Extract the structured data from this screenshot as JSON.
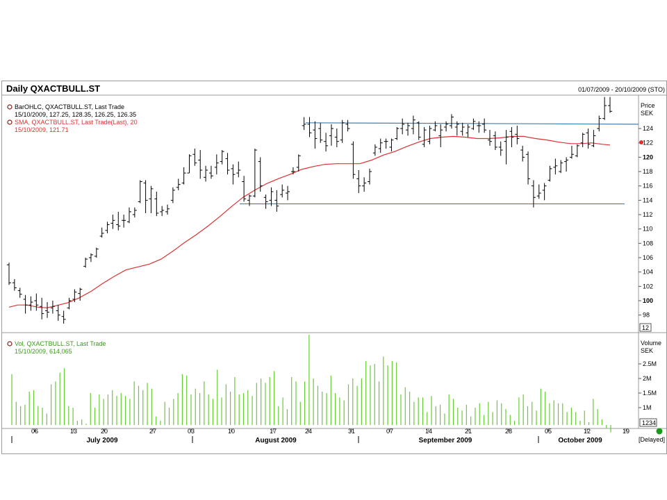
{
  "header": {
    "title": "Daily QXACTBULL.ST",
    "date_range": "01/07/2009 - 20/10/2009 (STO)"
  },
  "legend": {
    "bar_line1": "BarOHLC, QXACTBULL.ST, Last Trade",
    "bar_line2": "15/10/2009, 127.25, 128.35, 126.25, 126.35",
    "sma_line1": "SMA, QXACTBULL.ST, Last Trade(Last),  20",
    "sma_line2": "15/10/2009, 121.71",
    "vol_line1": "Vol, QXACTBULL.ST, Last Trade",
    "vol_line2": "15/10/2009, 614,065"
  },
  "price_axis": {
    "label": "Price",
    "unit": "SEK",
    "ticks": [
      "98",
      "100",
      "102",
      "104",
      "106",
      "108",
      "110",
      "112",
      "114",
      "116",
      "118",
      "120",
      "122",
      "124"
    ],
    "badge": "12"
  },
  "volume_axis": {
    "label": "Volume",
    "unit": "SEK",
    "ticks": [
      "1M",
      "1.5M",
      "2M",
      "2.5M"
    ],
    "badge": "1234"
  },
  "x_axis": {
    "day_ticks": [
      "06",
      "13",
      "20",
      "27",
      "03",
      "10",
      "17",
      "24",
      "31",
      "07",
      "14",
      "21",
      "28",
      "05",
      "12",
      "19"
    ],
    "months": [
      "July 2009",
      "August 2009",
      "September 2009",
      "October 2009"
    ]
  },
  "status": {
    "delayed": "[Delayed]",
    "indicator_color": "#1a9a1a"
  },
  "colors": {
    "bars": "#000000",
    "sma": "#e03030",
    "trendline": "#4a7fa8",
    "volume": "#66cc33"
  },
  "chart_data": [
    {
      "type": "ohlc",
      "series_name": "BarOHLC, QXACTBULL.ST, Last Trade",
      "y_range": [
        96.6,
        126.5
      ],
      "bars": [
        [
          105.0,
          105.3,
          102.2,
          102.5
        ],
        [
          102.5,
          103.0,
          101.4,
          101.8
        ],
        [
          101.4,
          101.8,
          100.4,
          100.9
        ],
        [
          100.2,
          100.8,
          98.2,
          99.4
        ],
        [
          99.4,
          100.6,
          98.6,
          99.8
        ],
        [
          100.0,
          101.0,
          98.6,
          99.4
        ],
        [
          99.2,
          100.4,
          97.4,
          98.2
        ],
        [
          98.6,
          99.8,
          97.6,
          98.4
        ],
        [
          99.0,
          100.0,
          98.2,
          99.2
        ],
        [
          98.6,
          99.4,
          97.2,
          98.0
        ],
        [
          97.8,
          98.6,
          96.8,
          97.4
        ],
        [
          99.0,
          100.4,
          98.8,
          100.0
        ],
        [
          100.2,
          101.6,
          99.8,
          101.2
        ],
        [
          101.0,
          101.8,
          100.0,
          101.6
        ],
        [
          104.8,
          106.0,
          104.6,
          105.8
        ],
        [
          106.0,
          106.6,
          105.4,
          106.4
        ],
        [
          106.2,
          107.4,
          106.0,
          107.2
        ],
        [
          109.0,
          110.2,
          108.8,
          109.4
        ],
        [
          109.8,
          111.0,
          109.4,
          110.6
        ],
        [
          110.8,
          112.0,
          110.0,
          111.2
        ],
        [
          110.6,
          112.4,
          109.8,
          110.4
        ],
        [
          111.2,
          112.0,
          110.2,
          111.2
        ],
        [
          111.0,
          113.0,
          110.8,
          112.4
        ],
        [
          112.0,
          113.0,
          111.6,
          112.6
        ],
        [
          113.8,
          116.8,
          113.6,
          116.6
        ],
        [
          116.4,
          116.8,
          112.2,
          114.0
        ],
        [
          114.2,
          116.0,
          112.2,
          115.6
        ],
        [
          114.2,
          115.2,
          111.8,
          112.2
        ],
        [
          112.4,
          113.2,
          111.8,
          112.6
        ],
        [
          112.4,
          113.4,
          112.0,
          112.8
        ],
        [
          114.0,
          115.8,
          113.6,
          115.4
        ],
        [
          115.8,
          117.0,
          115.4,
          116.2
        ],
        [
          116.4,
          118.6,
          116.2,
          117.8
        ],
        [
          117.8,
          120.4,
          117.8,
          120.2
        ],
        [
          120.4,
          121.2,
          118.8,
          119.2
        ],
        [
          119.6,
          121.0,
          117.0,
          118.2
        ],
        [
          117.2,
          118.8,
          116.6,
          118.2
        ],
        [
          117.8,
          118.8,
          117.0,
          117.4
        ],
        [
          118.6,
          120.4,
          117.6,
          119.2
        ],
        [
          119.4,
          121.0,
          119.0,
          120.8
        ],
        [
          119.8,
          120.6,
          117.6,
          118.2
        ],
        [
          118.4,
          119.0,
          116.2,
          117.6
        ],
        [
          117.8,
          119.4,
          117.2,
          118.2
        ],
        [
          116.6,
          117.4,
          113.8,
          114.2
        ],
        [
          114.0,
          114.8,
          113.2,
          114.6
        ],
        [
          114.6,
          121.2,
          114.4,
          121.0
        ],
        [
          119.4,
          120.0,
          115.2,
          116.0
        ],
        [
          114.4,
          114.8,
          112.8,
          113.8
        ],
        [
          114.0,
          115.8,
          113.2,
          115.2
        ],
        [
          114.0,
          115.4,
          112.4,
          113.2
        ],
        [
          114.8,
          116.2,
          114.4,
          115.4
        ],
        [
          115.0,
          116.0,
          114.0,
          115.2
        ],
        [
          118.0,
          118.6,
          117.6,
          118.0
        ],
        [
          118.6,
          120.4,
          118.0,
          120.2
        ],
        [
          124.4,
          125.6,
          123.8,
          124.6
        ],
        [
          124.6,
          125.6,
          122.8,
          123.4
        ],
        [
          123.8,
          125.0,
          121.2,
          122.6
        ],
        [
          124.0,
          124.8,
          122.0,
          122.4
        ],
        [
          122.2,
          123.4,
          120.8,
          121.6
        ],
        [
          123.0,
          124.6,
          121.6,
          124.0
        ],
        [
          122.8,
          124.0,
          121.4,
          122.2
        ],
        [
          122.4,
          125.2,
          122.0,
          124.8
        ],
        [
          124.6,
          125.2,
          123.6,
          124.0
        ],
        [
          121.8,
          122.2,
          117.0,
          117.6
        ],
        [
          117.0,
          118.2,
          115.0,
          116.0
        ],
        [
          116.0,
          117.2,
          115.2,
          116.4
        ],
        [
          116.6,
          118.4,
          116.2,
          118.0
        ],
        [
          120.6,
          121.8,
          120.2,
          121.4
        ],
        [
          121.2,
          122.6,
          120.6,
          122.0
        ],
        [
          122.2,
          122.6,
          121.2,
          122.2
        ],
        [
          121.4,
          122.6,
          120.8,
          122.4
        ],
        [
          122.6,
          124.2,
          122.4,
          124.0
        ],
        [
          124.0,
          125.4,
          123.2,
          124.6
        ],
        [
          123.8,
          124.8,
          123.0,
          124.4
        ],
        [
          124.0,
          125.8,
          123.2,
          125.2
        ],
        [
          124.8,
          125.0,
          122.4,
          122.8
        ],
        [
          121.8,
          124.2,
          121.4,
          123.8
        ],
        [
          122.2,
          124.4,
          121.8,
          124.0
        ],
        [
          123.8,
          125.0,
          123.6,
          124.4
        ],
        [
          123.0,
          124.6,
          121.4,
          123.8
        ],
        [
          124.2,
          125.0,
          123.6,
          124.6
        ],
        [
          124.4,
          126.0,
          124.0,
          125.6
        ],
        [
          124.2,
          125.0,
          123.0,
          124.6
        ],
        [
          123.6,
          124.8,
          123.0,
          124.2
        ],
        [
          123.4,
          124.6,
          122.8,
          124.2
        ],
        [
          124.0,
          125.4,
          123.8,
          125.0
        ],
        [
          124.4,
          125.0,
          123.4,
          124.4
        ],
        [
          124.6,
          125.4,
          123.4,
          123.8
        ],
        [
          122.4,
          123.8,
          121.6,
          122.2
        ],
        [
          123.0,
          123.6,
          121.0,
          121.4
        ],
        [
          121.4,
          122.2,
          120.2,
          121.0
        ],
        [
          122.2,
          123.8,
          119.0,
          122.8
        ],
        [
          123.6,
          124.2,
          121.4,
          122.8
        ],
        [
          123.2,
          124.4,
          121.8,
          122.6
        ],
        [
          121.0,
          121.6,
          119.4,
          120.0
        ],
        [
          120.4,
          120.8,
          116.2,
          117.0
        ],
        [
          116.0,
          116.8,
          113.0,
          114.4
        ],
        [
          114.6,
          116.2,
          114.2,
          115.0
        ],
        [
          115.4,
          116.4,
          114.0,
          116.0
        ],
        [
          116.8,
          118.8,
          116.6,
          118.4
        ],
        [
          118.6,
          119.8,
          117.6,
          118.8
        ],
        [
          118.0,
          119.6,
          117.8,
          119.2
        ],
        [
          119.4,
          120.0,
          118.0,
          119.6
        ],
        [
          120.0,
          121.6,
          119.8,
          120.4
        ],
        [
          120.2,
          121.8,
          120.0,
          121.6
        ],
        [
          122.0,
          123.4,
          121.4,
          123.2
        ],
        [
          123.4,
          124.0,
          121.2,
          121.8
        ],
        [
          121.6,
          123.8,
          121.4,
          123.0
        ],
        [
          124.0,
          125.8,
          123.6,
          125.4
        ],
        [
          125.4,
          128.4,
          125.2,
          127.2
        ],
        [
          127.2,
          128.4,
          126.2,
          126.4
        ]
      ]
    },
    {
      "type": "line",
      "series_name": "SMA, QXACTBULL.ST, Last Trade(Last),  20",
      "points": [
        [
          0,
          99.1
        ],
        [
          6,
          99.4
        ],
        [
          12,
          99.4
        ],
        [
          20,
          99.1
        ],
        [
          26,
          99.0
        ],
        [
          32,
          99.3
        ],
        [
          40,
          99.7
        ],
        [
          48,
          100.4
        ],
        [
          56,
          101.3
        ],
        [
          64,
          102.4
        ],
        [
          72,
          103.4
        ],
        [
          80,
          104.3
        ],
        [
          88,
          104.7
        ],
        [
          96,
          105.1
        ],
        [
          104,
          105.8
        ],
        [
          112,
          106.9
        ],
        [
          120,
          108.1
        ],
        [
          128,
          109.2
        ],
        [
          136,
          110.4
        ],
        [
          144,
          111.7
        ],
        [
          152,
          113.1
        ],
        [
          160,
          114.4
        ],
        [
          168,
          115.4
        ],
        [
          176,
          116.3
        ],
        [
          184,
          117.0
        ],
        [
          192,
          117.6
        ],
        [
          200,
          118.3
        ],
        [
          208,
          118.7
        ],
        [
          216,
          119.0
        ],
        [
          224,
          119.1
        ],
        [
          232,
          119.1
        ],
        [
          240,
          119.1
        ],
        [
          248,
          119.6
        ],
        [
          256,
          120.3
        ],
        [
          264,
          120.8
        ],
        [
          272,
          121.5
        ],
        [
          280,
          122.1
        ],
        [
          288,
          122.6
        ],
        [
          296,
          122.8
        ],
        [
          304,
          122.9
        ],
        [
          312,
          122.8
        ],
        [
          320,
          122.6
        ],
        [
          328,
          122.6
        ],
        [
          336,
          122.7
        ],
        [
          344,
          122.9
        ],
        [
          352,
          122.9
        ],
        [
          360,
          122.6
        ],
        [
          368,
          122.4
        ],
        [
          376,
          122.1
        ],
        [
          384,
          121.9
        ],
        [
          392,
          121.9
        ],
        [
          398,
          122.0
        ],
        [
          406,
          121.8
        ],
        [
          411,
          121.7
        ]
      ]
    },
    {
      "type": "trendline",
      "points": [
        [
          0,
          124.8
        ],
        [
          460,
          124.6
        ]
      ]
    },
    {
      "type": "trendline",
      "points": [
        [
          -84,
          113.5
        ],
        [
          460,
          113.5
        ]
      ]
    },
    {
      "type": "bar",
      "series_name": "Vol, QXACTBULL.ST, Last Trade",
      "y_range": [
        0,
        3.5
      ],
      "values": [
        2.15,
        1.2,
        1.05,
        1.1,
        1.55,
        1.6,
        1.05,
        1.0,
        0.8,
        1.8,
        1.9,
        2.2,
        2.35,
        1.05,
        1.0,
        0.55,
        0.6,
        0.45,
        1.5,
        1.0,
        1.45,
        1.3,
        1.45,
        1.6,
        1.4,
        1.5,
        1.4,
        1.3,
        1.9,
        1.75,
        1.6,
        1.85,
        1.65,
        0.7,
        0.55,
        1.2,
        1.0,
        1.3,
        1.5,
        2.15,
        2.1,
        1.45,
        1.65,
        1.5,
        1.9,
        1.45,
        1.3,
        2.3,
        1.35,
        1.8,
        1.55,
        2.05,
        1.45,
        1.5,
        1.6,
        1.4,
        1.85,
        2.0,
        1.85,
        2.05,
        2.25,
        1.05,
        1.35,
        0.95,
        2.05,
        1.9,
        1.2,
        1.9,
        3.5,
        2.0,
        1.75,
        1.55,
        1.5,
        2.1,
        1.5,
        1.35,
        1.25,
        1.8,
        2.0,
        1.75,
        2.0,
        2.6,
        2.45,
        2.5,
        1.9,
        2.75,
        2.45,
        2.6,
        2.55,
        1.45,
        1.7,
        1.55,
        1.2,
        1.35,
        1.35,
        0.85,
        1.4,
        1.05,
        1.1,
        0.8,
        1.45,
        1.3,
        1.0,
        0.9,
        1.1,
        0.7,
        1.0,
        1.15,
        0.75,
        1.2,
        0.85,
        1.25,
        1.15,
        0.95,
        0.75,
        0.55,
        1.35,
        1.45,
        1.05,
        1.2,
        0.9,
        1.65,
        1.55,
        1.15,
        1.25,
        1.15,
        1.15,
        0.85,
        1.0,
        0.85,
        0.55,
        0.9,
        0.5,
        1.3,
        0.95,
        0.6,
        0.3,
        0.15
      ]
    }
  ]
}
